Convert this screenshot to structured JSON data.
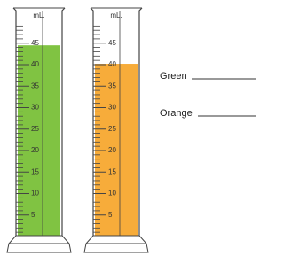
{
  "cylinders": [
    {
      "unit": "mL.",
      "level": 44.5,
      "color": "#80c342"
    },
    {
      "unit": "mL.",
      "level": 40.2,
      "color": "#f7ac3a"
    }
  ],
  "scale": [
    5,
    10,
    15,
    20,
    25,
    30,
    35,
    40,
    45
  ],
  "labels": [
    {
      "text": "Green"
    },
    {
      "text": "Orange"
    }
  ]
}
